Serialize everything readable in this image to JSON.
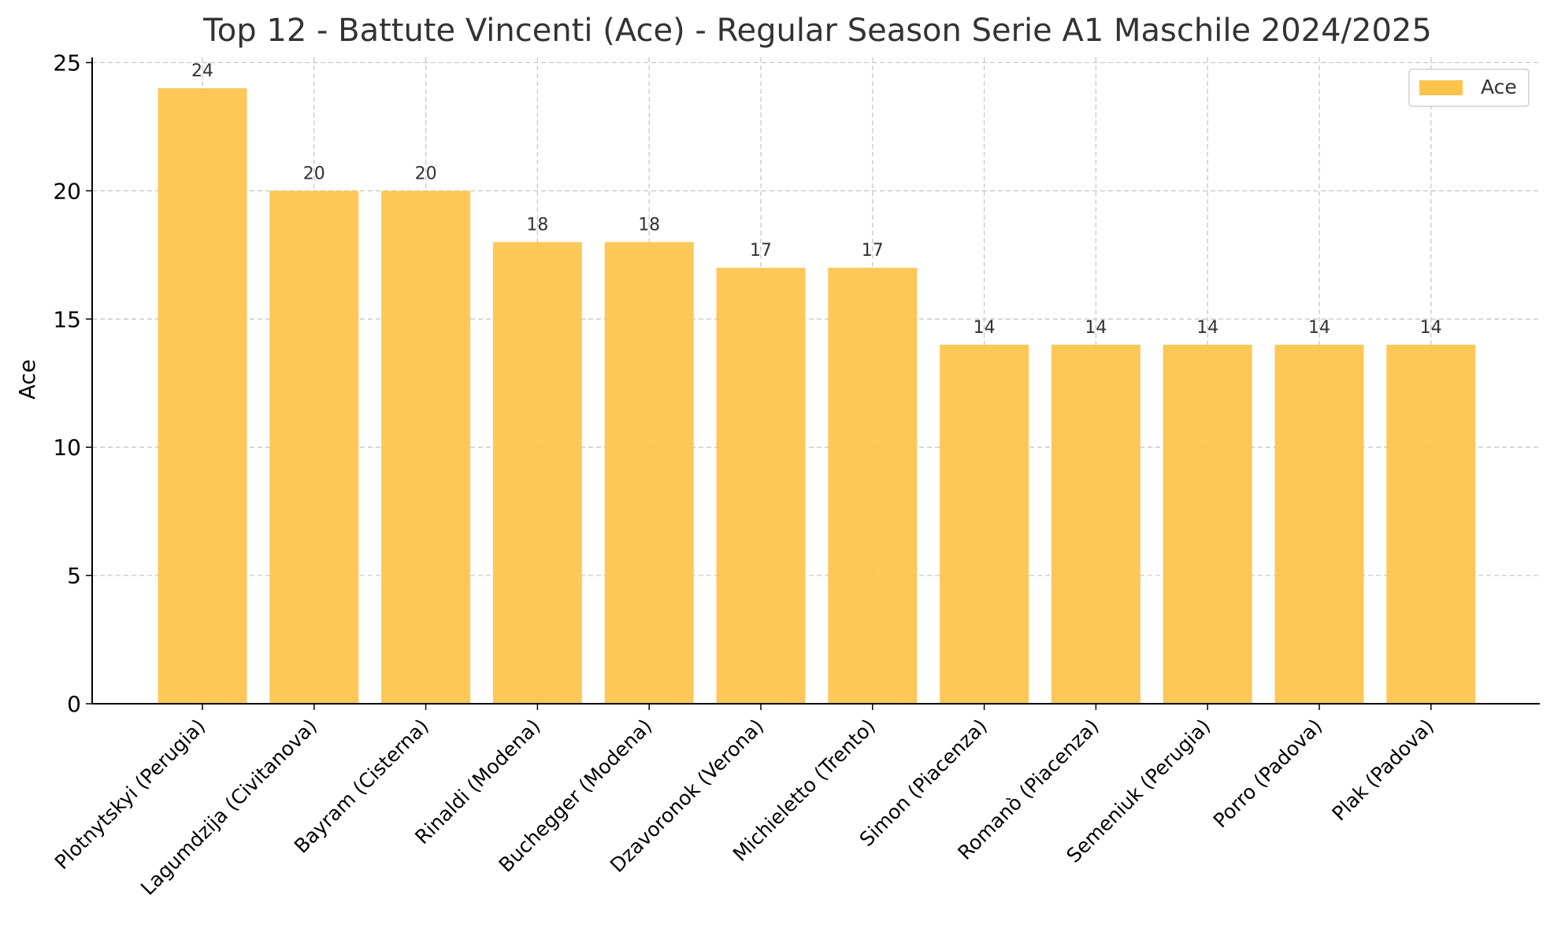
{
  "chart_data": {
    "type": "bar",
    "title": "Top 12 - Battute Vincenti (Ace) - Regular Season Serie A1 Maschile 2024/2025",
    "xlabel": "",
    "ylabel": "Ace",
    "ylim": [
      0,
      25.2
    ],
    "yticks": [
      0,
      5,
      10,
      15,
      20,
      25
    ],
    "grid": true,
    "legend_position": "top-right",
    "categories": [
      "Plotnytskyi (Perugia)",
      "Lagumdzija (Civitanova)",
      "Bayram (Cisterna)",
      "Rinaldi (Modena)",
      "Buchegger (Modena)",
      "Dzavoronok (Verona)",
      "Michieletto (Trento)",
      "Simon (Piacenza)",
      "Romanò (Piacenza)",
      "Semeniuk (Perugia)",
      "Porro (Padova)",
      "Plak (Padova)"
    ],
    "series": [
      {
        "name": "Ace",
        "color": "#fdc44b",
        "values": [
          24,
          20,
          20,
          18,
          18,
          17,
          17,
          14,
          14,
          14,
          14,
          14
        ]
      }
    ]
  },
  "colors": {
    "bar": "#fdc44b",
    "grid": "#c8c8c8",
    "axis": "#000000",
    "text": "#333333"
  }
}
